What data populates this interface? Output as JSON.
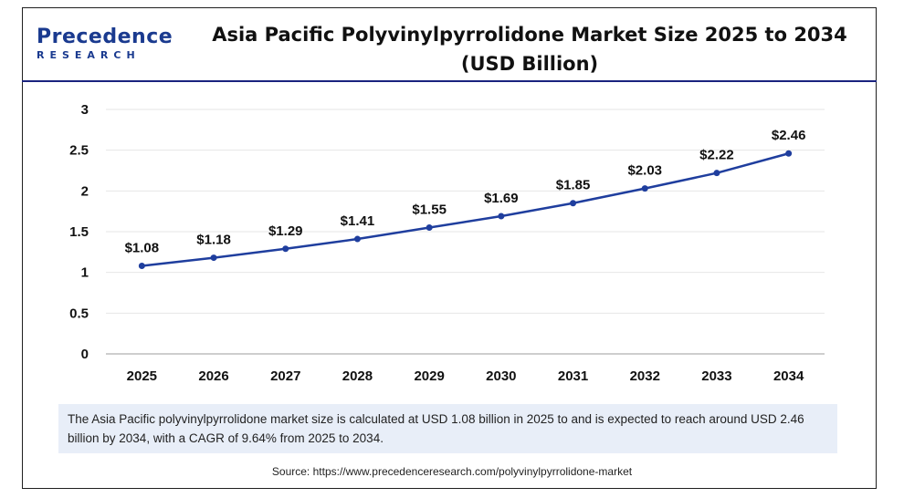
{
  "logo": {
    "word": "Precedence",
    "sub": "RESEARCH"
  },
  "title_lines": [
    "Asia Pacific Polyvinylpyrrolidone Market Size 2025 to 2034",
    "(USD Billion)"
  ],
  "note": "The Asia Pacific polyvinylpyrrolidone market size is calculated at USD 1.08 billion in 2025 to and is expected to reach around USD 2.46 billion by 2034, with a CAGR of 9.64% from 2025 to 2034.",
  "source": "Source: https://www.precedenceresearch.com/polyvinylpyrrolidone-market",
  "colors": {
    "line": "#1f3e9e",
    "accent": "#1a237e",
    "note_bg": "#e8eef8"
  },
  "chart_data": {
    "type": "line",
    "title": "Asia Pacific Polyvinylpyrrolidone Market Size 2025 to 2034 (USD Billion)",
    "x": [
      "2025",
      "2026",
      "2027",
      "2028",
      "2029",
      "2030",
      "2031",
      "2032",
      "2033",
      "2034"
    ],
    "values": [
      1.08,
      1.18,
      1.29,
      1.41,
      1.55,
      1.69,
      1.85,
      2.03,
      2.22,
      2.46
    ],
    "data_labels": [
      "$1.08",
      "$1.18",
      "$1.29",
      "$1.41",
      "$1.55",
      "$1.69",
      "$1.85",
      "$2.03",
      "$2.22",
      "$2.46"
    ],
    "yticks": [
      "0",
      "0.5",
      "1",
      "1.5",
      "2",
      "2.5",
      "3"
    ],
    "ylim": [
      0,
      3
    ],
    "grid": true,
    "legend": "none"
  }
}
